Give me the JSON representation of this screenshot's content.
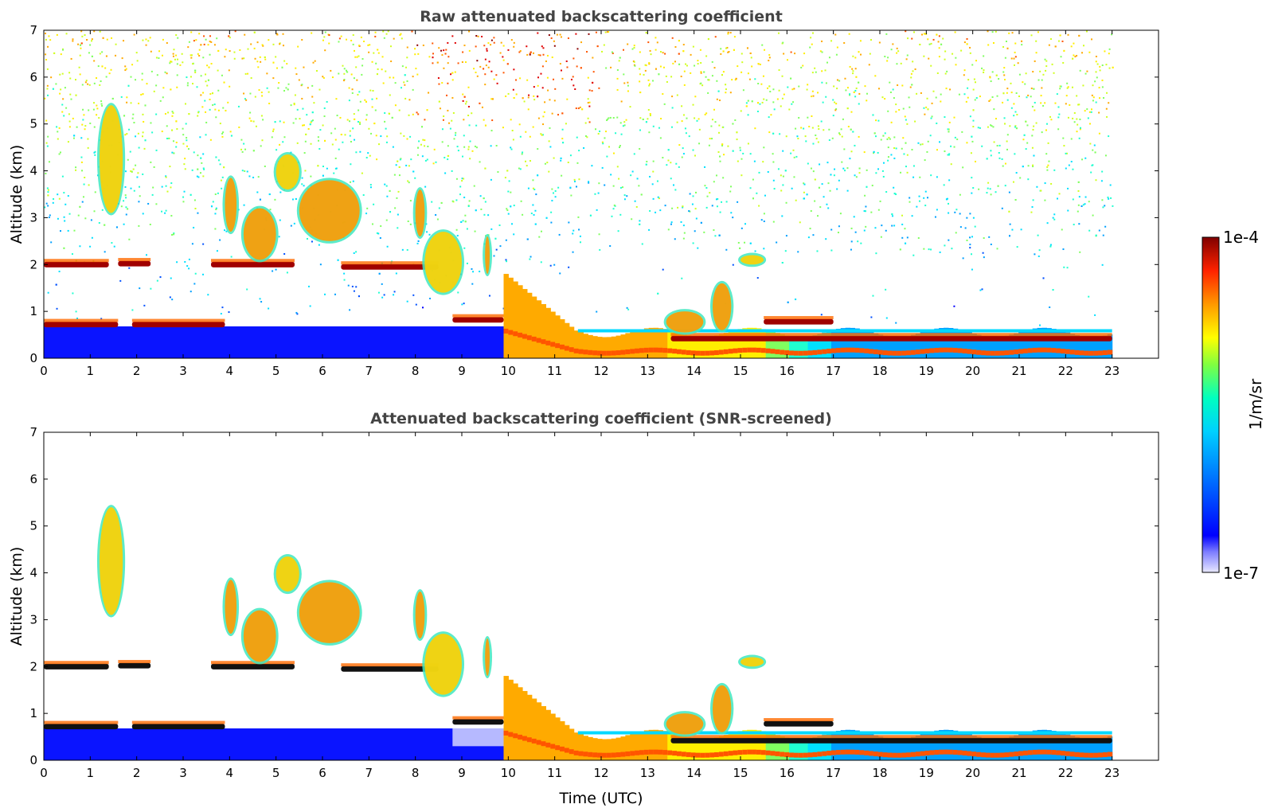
{
  "chart_data": [
    {
      "type": "heatmap",
      "title": "Raw attenuated backscattering coefficient",
      "xlabel": "",
      "ylabel": "Altitude (km)",
      "xlim": [
        0,
        24
      ],
      "ylim": [
        0,
        7
      ],
      "xticks": [
        "0",
        "1",
        "2",
        "3",
        "4",
        "5",
        "6",
        "7",
        "8",
        "9",
        "10",
        "11",
        "12",
        "13",
        "14",
        "15",
        "16",
        "17",
        "18",
        "19",
        "20",
        "21",
        "22",
        "23"
      ],
      "yticks": [
        "0",
        "1",
        "2",
        "3",
        "4",
        "5",
        "6",
        "7"
      ],
      "data_x_range": [
        0,
        23
      ],
      "grid": false,
      "features": [
        {
          "label": "boundary layer",
          "x": [
            0,
            23
          ],
          "altitude_top_km": [
            0.6,
            0.6
          ]
        },
        {
          "label": "cloud layer",
          "x": [
            0,
            1.4
          ],
          "altitude_km": 2.0
        },
        {
          "label": "cloud layer",
          "x": [
            1.6,
            2.3
          ],
          "altitude_km": 2.0
        },
        {
          "label": "cloud layer",
          "x": [
            3.6,
            5.4
          ],
          "altitude_km": 2.0
        },
        {
          "label": "cloud layer",
          "x": [
            6.4,
            8.5
          ],
          "altitude_km": 1.9
        },
        {
          "label": "elevated cloud",
          "x": [
            3.9,
            4.1
          ],
          "altitude_km": [
            2.7,
            3.8
          ]
        },
        {
          "label": "elevated cloud",
          "x": [
            4.3,
            5.0
          ],
          "altitude_km": [
            2.1,
            3.2
          ]
        },
        {
          "label": "elevated cloud",
          "x": [
            5.0,
            5.5
          ],
          "altitude_km": [
            3.6,
            4.3
          ]
        },
        {
          "label": "elevated cloud",
          "x": [
            5.5,
            6.8
          ],
          "altitude_km": [
            2.5,
            3.8
          ]
        },
        {
          "label": "elevated cloud",
          "x": [
            1.2,
            1.7
          ],
          "altitude_km": [
            3.1,
            5.4
          ]
        },
        {
          "label": "elevated cloud",
          "x": [
            8.0,
            8.2
          ],
          "altitude_km": [
            2.6,
            3.6
          ]
        },
        {
          "label": "elevated cloud",
          "x": [
            8.2,
            9.0
          ],
          "altitude_km": [
            1.4,
            2.7
          ]
        },
        {
          "label": "elevated cloud",
          "x": [
            14.4,
            14.8
          ],
          "altitude_km": [
            0.5,
            1.6
          ]
        },
        {
          "label": "elevated cloud",
          "x": [
            15.0,
            15.5
          ],
          "altitude_km": [
            2.0,
            2.2
          ]
        },
        {
          "label": "convective boundary layer",
          "x": [
            9.9,
            11.5
          ],
          "altitude_km": [
            0.0,
            1.8
          ]
        }
      ]
    },
    {
      "type": "heatmap",
      "title": "Attenuated backscattering coefficient (SNR-screened)",
      "xlabel": "Time (UTC)",
      "ylabel": "Altitude (km)",
      "xlim": [
        0,
        24
      ],
      "ylim": [
        0,
        7
      ],
      "xticks": [
        "0",
        "1",
        "2",
        "3",
        "4",
        "5",
        "6",
        "7",
        "8",
        "9",
        "10",
        "11",
        "12",
        "13",
        "14",
        "15",
        "16",
        "17",
        "18",
        "19",
        "20",
        "21",
        "22",
        "23"
      ],
      "yticks": [
        "0",
        "1",
        "2",
        "3",
        "4",
        "5",
        "6",
        "7"
      ],
      "data_x_range": [
        0,
        23
      ],
      "grid": false
    }
  ],
  "colorbar": {
    "max_label": "1e-4",
    "min_label": "1e-7",
    "label": "1/m/sr",
    "min_value": 1e-07,
    "max_value": 0.0001,
    "scale": "log",
    "colormap": [
      "#0000ff",
      "#0060ff",
      "#00bfff",
      "#00ffcc",
      "#7fff3a",
      "#ffff00",
      "#ff9900",
      "#ff2a00",
      "#8b0000"
    ]
  }
}
